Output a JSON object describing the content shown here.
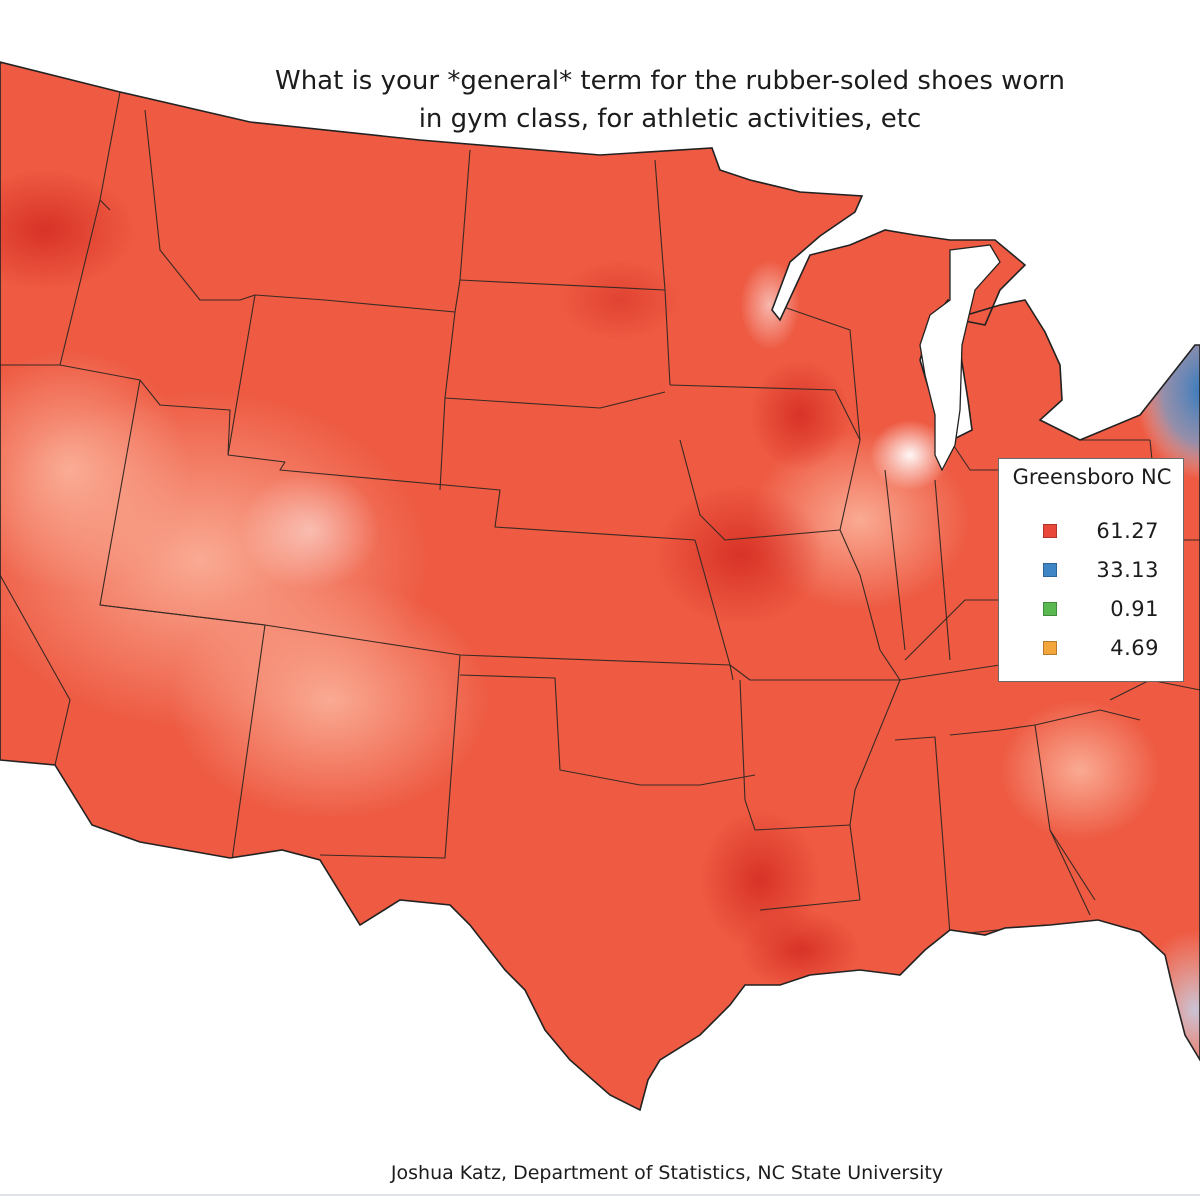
{
  "title": {
    "line1": "What is your *general* term for the rubber-soled shoes worn",
    "line2": "in gym class, for athletic activities, etc"
  },
  "legend": {
    "title": "Greensboro NC",
    "entries": [
      {
        "value": "61.27",
        "color": "#e8473a"
      },
      {
        "value": "33.13",
        "color": "#3e86c6"
      },
      {
        "value": "0.91",
        "color": "#59b84f"
      },
      {
        "value": "4.69",
        "color": "#f1a53a"
      }
    ]
  },
  "credit": "Joshua Katz, Department of Statistics, NC State University",
  "colors": {
    "dominant": "#ee5a42",
    "intense": "#dc3326",
    "pale": "#f8a08a",
    "blue": "#3a7fc0"
  }
}
